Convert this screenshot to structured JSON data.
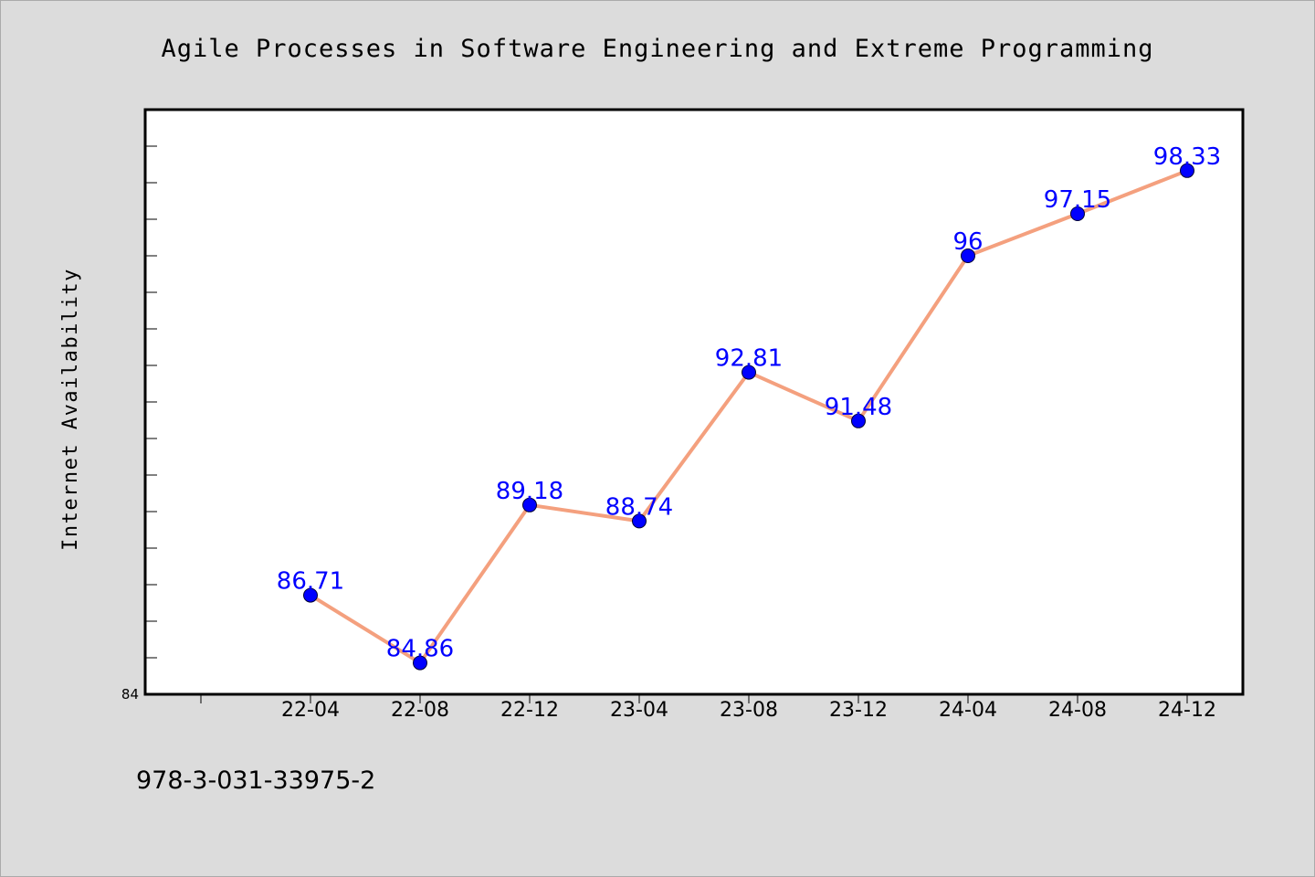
{
  "chart_data": {
    "type": "line",
    "title": "Agile Processes in Software Engineering and Extreme Programming",
    "xlabel": "",
    "ylabel": "Internet Availability",
    "categories": [
      "22-04",
      "22-08",
      "22-12",
      "23-04",
      "23-08",
      "23-12",
      "24-04",
      "24-08",
      "24-12"
    ],
    "series": [
      {
        "values": [
          86.71,
          84.86,
          89.18,
          88.74,
          92.81,
          91.48,
          96,
          97.15,
          98.33
        ]
      }
    ],
    "data_labels": [
      "86.71",
      "84.86",
      "89.18",
      "88.74",
      "92.81",
      "91.48",
      "96",
      "97.15",
      "98.33"
    ],
    "y_tick_labels": [
      {
        "value": 84,
        "label": "84"
      }
    ],
    "ylim": [
      84,
      100
    ],
    "grid": false,
    "legend": "none",
    "line_color": "#f4a07e",
    "marker_color": "#0000ff",
    "label_color": "#0000ff"
  },
  "footer": {
    "isbn": "978-3-031-33975-2"
  }
}
